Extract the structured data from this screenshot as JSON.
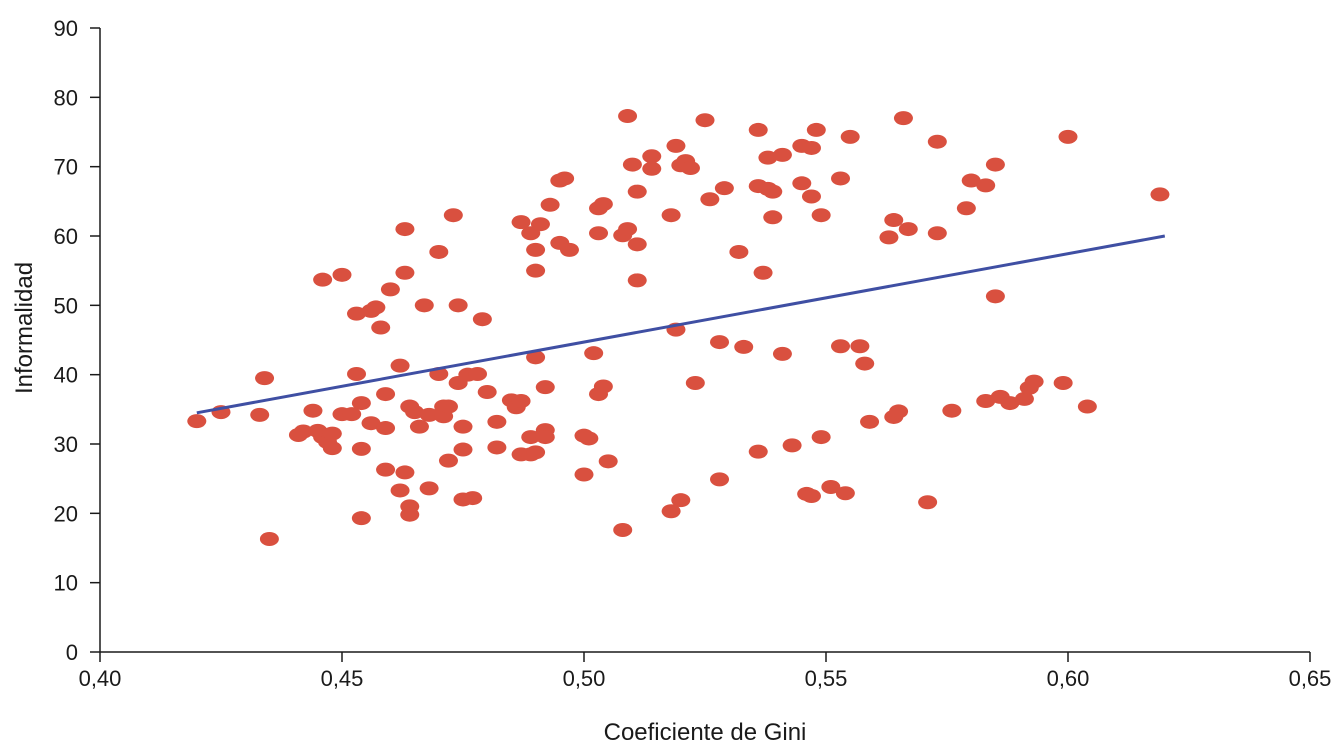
{
  "chart_data": {
    "type": "scatter",
    "title": "",
    "xlabel": "Coeficiente de Gini",
    "ylabel": "Informalidad",
    "xlim": [
      0.4,
      0.65
    ],
    "ylim": [
      0,
      90
    ],
    "x_ticks": [
      "0,40",
      "0,45",
      "0,50",
      "0,55",
      "0,60",
      "0,65"
    ],
    "y_ticks": [
      "0",
      "10",
      "20",
      "30",
      "40",
      "50",
      "60",
      "70",
      "80",
      "90"
    ],
    "grid": false,
    "legend": "none",
    "colors": {
      "points": "#d9503f",
      "trendline": "#3f4fa3",
      "axis": "#1a1a1a"
    },
    "trendline": {
      "x": [
        0.42,
        0.62
      ],
      "y": [
        34.5,
        60.0
      ]
    },
    "points": [
      [
        0.42,
        33.3
      ],
      [
        0.425,
        34.6
      ],
      [
        0.433,
        34.2
      ],
      [
        0.434,
        39.5
      ],
      [
        0.435,
        16.3
      ],
      [
        0.441,
        31.3
      ],
      [
        0.442,
        31.8
      ],
      [
        0.444,
        34.8
      ],
      [
        0.445,
        31.9
      ],
      [
        0.446,
        53.7
      ],
      [
        0.446,
        31.0
      ],
      [
        0.447,
        30.3
      ],
      [
        0.448,
        29.4
      ],
      [
        0.448,
        31.5
      ],
      [
        0.45,
        54.4
      ],
      [
        0.45,
        34.3
      ],
      [
        0.452,
        34.3
      ],
      [
        0.453,
        48.8
      ],
      [
        0.453,
        40.1
      ],
      [
        0.454,
        35.9
      ],
      [
        0.454,
        29.3
      ],
      [
        0.454,
        19.3
      ],
      [
        0.456,
        49.2
      ],
      [
        0.456,
        33.0
      ],
      [
        0.457,
        49.7
      ],
      [
        0.458,
        46.8
      ],
      [
        0.459,
        32.3
      ],
      [
        0.459,
        37.2
      ],
      [
        0.459,
        26.3
      ],
      [
        0.46,
        52.3
      ],
      [
        0.462,
        41.3
      ],
      [
        0.462,
        23.3
      ],
      [
        0.463,
        61.0
      ],
      [
        0.463,
        54.7
      ],
      [
        0.463,
        25.9
      ],
      [
        0.464,
        21.0
      ],
      [
        0.464,
        19.8
      ],
      [
        0.464,
        35.4
      ],
      [
        0.465,
        34.6
      ],
      [
        0.466,
        32.5
      ],
      [
        0.467,
        50.0
      ],
      [
        0.468,
        23.6
      ],
      [
        0.468,
        34.2
      ],
      [
        0.47,
        57.7
      ],
      [
        0.47,
        40.1
      ],
      [
        0.471,
        35.4
      ],
      [
        0.471,
        34.0
      ],
      [
        0.472,
        35.4
      ],
      [
        0.472,
        27.6
      ],
      [
        0.473,
        63.0
      ],
      [
        0.474,
        50.0
      ],
      [
        0.474,
        38.8
      ],
      [
        0.475,
        32.5
      ],
      [
        0.475,
        22.0
      ],
      [
        0.475,
        29.2
      ],
      [
        0.476,
        40.0
      ],
      [
        0.477,
        22.2
      ],
      [
        0.478,
        40.1
      ],
      [
        0.479,
        48.0
      ],
      [
        0.48,
        37.5
      ],
      [
        0.482,
        33.2
      ],
      [
        0.482,
        29.5
      ],
      [
        0.485,
        36.3
      ],
      [
        0.486,
        35.3
      ],
      [
        0.487,
        62.0
      ],
      [
        0.487,
        36.2
      ],
      [
        0.487,
        28.5
      ],
      [
        0.489,
        28.5
      ],
      [
        0.489,
        31.0
      ],
      [
        0.489,
        60.4
      ],
      [
        0.49,
        55.0
      ],
      [
        0.49,
        58.0
      ],
      [
        0.49,
        42.5
      ],
      [
        0.49,
        28.8
      ],
      [
        0.491,
        61.7
      ],
      [
        0.492,
        38.2
      ],
      [
        0.492,
        32.0
      ],
      [
        0.492,
        31.0
      ],
      [
        0.493,
        64.5
      ],
      [
        0.495,
        68.0
      ],
      [
        0.495,
        59.0
      ],
      [
        0.496,
        68.3
      ],
      [
        0.497,
        58.0
      ],
      [
        0.5,
        31.2
      ],
      [
        0.5,
        25.6
      ],
      [
        0.501,
        30.8
      ],
      [
        0.502,
        43.1
      ],
      [
        0.503,
        37.2
      ],
      [
        0.503,
        64.0
      ],
      [
        0.503,
        60.4
      ],
      [
        0.504,
        64.6
      ],
      [
        0.504,
        38.3
      ],
      [
        0.505,
        27.5
      ],
      [
        0.508,
        60.1
      ],
      [
        0.508,
        17.6
      ],
      [
        0.509,
        61.0
      ],
      [
        0.509,
        77.3
      ],
      [
        0.51,
        70.3
      ],
      [
        0.511,
        58.8
      ],
      [
        0.511,
        53.6
      ],
      [
        0.511,
        66.4
      ],
      [
        0.514,
        71.5
      ],
      [
        0.514,
        69.7
      ],
      [
        0.518,
        20.3
      ],
      [
        0.518,
        63.0
      ],
      [
        0.519,
        73.0
      ],
      [
        0.519,
        46.5
      ],
      [
        0.52,
        21.9
      ],
      [
        0.52,
        70.2
      ],
      [
        0.521,
        70.8
      ],
      [
        0.522,
        69.8
      ],
      [
        0.523,
        38.8
      ],
      [
        0.525,
        76.7
      ],
      [
        0.526,
        65.3
      ],
      [
        0.528,
        44.7
      ],
      [
        0.528,
        24.9
      ],
      [
        0.529,
        66.9
      ],
      [
        0.532,
        57.7
      ],
      [
        0.533,
        44.0
      ],
      [
        0.536,
        75.3
      ],
      [
        0.536,
        67.2
      ],
      [
        0.537,
        54.7
      ],
      [
        0.536,
        28.9
      ],
      [
        0.538,
        66.8
      ],
      [
        0.538,
        71.3
      ],
      [
        0.539,
        62.7
      ],
      [
        0.539,
        66.4
      ],
      [
        0.541,
        71.7
      ],
      [
        0.541,
        43.0
      ],
      [
        0.543,
        29.8
      ],
      [
        0.545,
        73.0
      ],
      [
        0.545,
        67.6
      ],
      [
        0.546,
        22.8
      ],
      [
        0.547,
        72.7
      ],
      [
        0.547,
        65.7
      ],
      [
        0.547,
        22.5
      ],
      [
        0.548,
        75.3
      ],
      [
        0.549,
        63.0
      ],
      [
        0.549,
        31.0
      ],
      [
        0.551,
        23.8
      ],
      [
        0.553,
        68.3
      ],
      [
        0.553,
        44.1
      ],
      [
        0.554,
        22.9
      ],
      [
        0.555,
        74.3
      ],
      [
        0.557,
        44.1
      ],
      [
        0.558,
        41.6
      ],
      [
        0.559,
        33.2
      ],
      [
        0.563,
        59.8
      ],
      [
        0.564,
        62.3
      ],
      [
        0.564,
        33.9
      ],
      [
        0.565,
        34.7
      ],
      [
        0.566,
        77.0
      ],
      [
        0.567,
        61.0
      ],
      [
        0.571,
        21.6
      ],
      [
        0.573,
        73.6
      ],
      [
        0.573,
        60.4
      ],
      [
        0.576,
        34.8
      ],
      [
        0.579,
        64.0
      ],
      [
        0.58,
        68.0
      ],
      [
        0.583,
        67.3
      ],
      [
        0.583,
        36.2
      ],
      [
        0.585,
        70.3
      ],
      [
        0.585,
        51.3
      ],
      [
        0.586,
        36.8
      ],
      [
        0.588,
        35.9
      ],
      [
        0.591,
        36.5
      ],
      [
        0.592,
        38.1
      ],
      [
        0.593,
        39.0
      ],
      [
        0.599,
        38.8
      ],
      [
        0.6,
        74.3
      ],
      [
        0.604,
        35.4
      ],
      [
        0.619,
        66.0
      ]
    ]
  }
}
